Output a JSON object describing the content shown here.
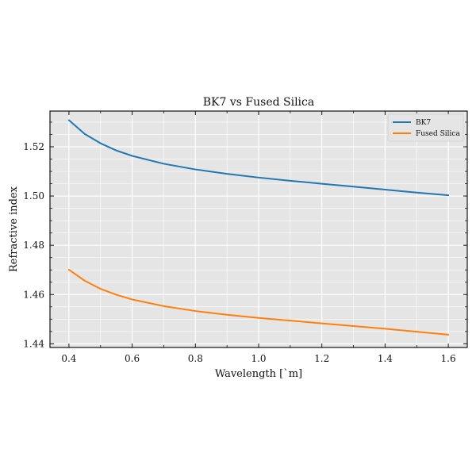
{
  "chart_data": {
    "type": "line",
    "title": "BK7 vs Fused Silica",
    "xlabel": "Wavelength [`m]",
    "ylabel": "Refractive index",
    "xlim": [
      0.34,
      1.66
    ],
    "ylim": [
      1.4385,
      1.5345
    ],
    "x_ticks": [
      "0.4",
      "0.6",
      "0.8",
      "1.0",
      "1.2",
      "1.4",
      "1.6"
    ],
    "y_ticks": [
      "1.44",
      "1.46",
      "1.48",
      "1.50",
      "1.52"
    ],
    "grid": true,
    "legend_position": "top-right",
    "series": [
      {
        "name": "BK7",
        "color": "#1f77b4",
        "x": [
          0.4,
          0.45,
          0.5,
          0.55,
          0.6,
          0.7,
          0.8,
          0.9,
          1.0,
          1.1,
          1.2,
          1.3,
          1.4,
          1.5,
          1.6
        ],
        "y": [
          1.5308,
          1.5252,
          1.5214,
          1.5185,
          1.5163,
          1.5131,
          1.5108,
          1.509,
          1.5075,
          1.5062,
          1.505,
          1.5038,
          1.5026,
          1.5014,
          1.5003
        ]
      },
      {
        "name": "Fused Silica",
        "color": "#ff7f0e",
        "x": [
          0.4,
          0.45,
          0.5,
          0.55,
          0.6,
          0.7,
          0.8,
          0.9,
          1.0,
          1.1,
          1.2,
          1.3,
          1.4,
          1.5,
          1.6
        ],
        "y": [
          1.4701,
          1.4656,
          1.4623,
          1.4599,
          1.458,
          1.4553,
          1.4533,
          1.4518,
          1.4505,
          1.4494,
          1.4483,
          1.4472,
          1.4461,
          1.4449,
          1.4437
        ]
      }
    ]
  }
}
